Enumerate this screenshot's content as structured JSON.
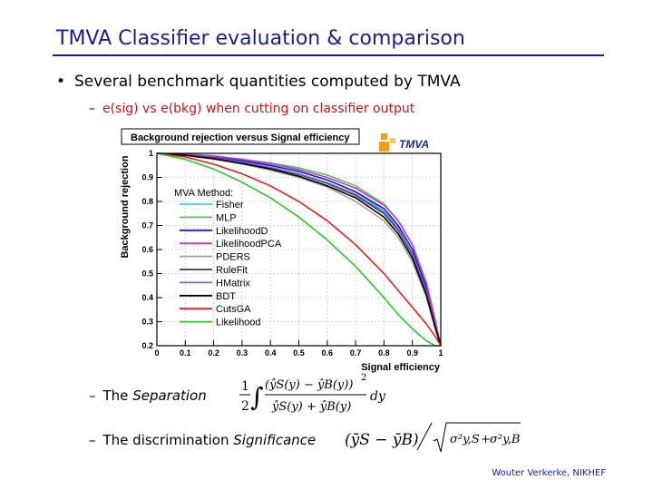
{
  "slide": {
    "title": "TMVA Classifier evaluation & comparison",
    "bullet_text": "Several benchmark quantities computed by TMVA",
    "sub_item": "e(sig) vs e(bkg) when cutting on classifier output",
    "separation_prefix": "The",
    "separation_term": "Separation",
    "significance_prefix": "The discrimination",
    "significance_term": "Significance",
    "footer": "Wouter Verkerke, NIKHEF",
    "colors": {
      "title": "#1c1c8c",
      "subitem": "#c0181c"
    }
  },
  "logo": {
    "text": "TMVA"
  },
  "equations": {
    "separation": {
      "half_num": "1",
      "half_den": "2",
      "numerator": "(ŷS(y) − ŷB(y))",
      "exponent": "2",
      "denominator": "ŷS(y) + ŷB(y)",
      "dy": "dy"
    },
    "significance": {
      "numerator": "(ȳS − ȳB)",
      "sigma1": "σ²y,S",
      "sigma2": "σ²y,B"
    }
  },
  "chart_data": {
    "type": "line",
    "title": "Background rejection versus Signal efficiency",
    "xlabel": "Signal efficiency",
    "ylabel": "Background rejection",
    "xlim": [
      0,
      1
    ],
    "ylim": [
      0.2,
      1
    ],
    "xticks": [
      "0",
      "0.1",
      "0.2",
      "0.3",
      "0.4",
      "0.5",
      "0.6",
      "0.7",
      "0.8",
      "0.9",
      "1"
    ],
    "yticks": [
      "0.2",
      "0.3",
      "0.4",
      "0.5",
      "0.6",
      "0.7",
      "0.8",
      "0.9",
      "1"
    ],
    "grid": true,
    "legend_title": "MVA Method:",
    "legend_position": "left",
    "series": [
      {
        "name": "Fisher",
        "color": "#43d1dc",
        "x": [
          0,
          0.1,
          0.2,
          0.3,
          0.4,
          0.5,
          0.6,
          0.7,
          0.8,
          0.85,
          0.9,
          0.95,
          0.98,
          1
        ],
        "y": [
          1,
          0.995,
          0.985,
          0.97,
          0.95,
          0.925,
          0.89,
          0.84,
          0.76,
          0.69,
          0.58,
          0.42,
          0.28,
          0.2
        ]
      },
      {
        "name": "MLP",
        "color": "#52c750",
        "x": [
          0,
          0.1,
          0.2,
          0.3,
          0.4,
          0.5,
          0.6,
          0.7,
          0.8,
          0.85,
          0.9,
          0.95,
          0.98,
          1
        ],
        "y": [
          1,
          0.997,
          0.99,
          0.975,
          0.96,
          0.94,
          0.91,
          0.865,
          0.79,
          0.72,
          0.62,
          0.45,
          0.3,
          0.2
        ]
      },
      {
        "name": "LikelihoodD",
        "color": "#1c1cc8",
        "x": [
          0,
          0.1,
          0.2,
          0.3,
          0.4,
          0.5,
          0.6,
          0.7,
          0.8,
          0.85,
          0.9,
          0.95,
          0.98,
          1
        ],
        "y": [
          1,
          0.995,
          0.985,
          0.97,
          0.95,
          0.925,
          0.89,
          0.84,
          0.77,
          0.7,
          0.6,
          0.44,
          0.29,
          0.2
        ]
      },
      {
        "name": "LikelihoodPCA",
        "color": "#c837c8",
        "x": [
          0,
          0.1,
          0.2,
          0.3,
          0.4,
          0.5,
          0.6,
          0.7,
          0.8,
          0.85,
          0.9,
          0.95,
          0.98,
          1
        ],
        "y": [
          1,
          0.996,
          0.988,
          0.975,
          0.957,
          0.933,
          0.9,
          0.855,
          0.785,
          0.72,
          0.62,
          0.46,
          0.31,
          0.2
        ]
      },
      {
        "name": "PDERS",
        "color": "#a0a0a0",
        "x": [
          0,
          0.1,
          0.2,
          0.3,
          0.4,
          0.5,
          0.6,
          0.7,
          0.8,
          0.85,
          0.9,
          0.95,
          0.98,
          1
        ],
        "y": [
          1,
          0.99,
          0.975,
          0.955,
          0.93,
          0.9,
          0.86,
          0.8,
          0.72,
          0.65,
          0.55,
          0.4,
          0.27,
          0.2
        ]
      },
      {
        "name": "RuleFit",
        "color": "#3c3c3c",
        "x": [
          0,
          0.1,
          0.2,
          0.3,
          0.4,
          0.5,
          0.6,
          0.7,
          0.8,
          0.85,
          0.9,
          0.95,
          0.98,
          1
        ],
        "y": [
          1,
          0.993,
          0.98,
          0.962,
          0.94,
          0.913,
          0.875,
          0.825,
          0.75,
          0.68,
          0.58,
          0.42,
          0.28,
          0.2
        ]
      },
      {
        "name": "HMatrix",
        "color": "#6a6ad2",
        "x": [
          0,
          0.1,
          0.2,
          0.3,
          0.4,
          0.5,
          0.6,
          0.7,
          0.8,
          0.85,
          0.9,
          0.95,
          0.98,
          1
        ],
        "y": [
          1,
          0.993,
          0.98,
          0.964,
          0.942,
          0.915,
          0.878,
          0.83,
          0.755,
          0.685,
          0.585,
          0.425,
          0.285,
          0.2
        ]
      },
      {
        "name": "BDT",
        "color": "#000000",
        "x": [
          0,
          0.1,
          0.2,
          0.3,
          0.4,
          0.5,
          0.6,
          0.7,
          0.8,
          0.85,
          0.9,
          0.95,
          0.98,
          1
        ],
        "y": [
          1,
          0.992,
          0.978,
          0.958,
          0.935,
          0.905,
          0.865,
          0.815,
          0.735,
          0.665,
          0.565,
          0.41,
          0.28,
          0.2
        ]
      },
      {
        "name": "CutsGA",
        "color": "#dc1e1e",
        "x": [
          0,
          0.1,
          0.2,
          0.3,
          0.4,
          0.5,
          0.6,
          0.7,
          0.8,
          0.85,
          0.9,
          0.95,
          0.98,
          1
        ],
        "y": [
          1,
          0.985,
          0.955,
          0.915,
          0.865,
          0.8,
          0.72,
          0.62,
          0.5,
          0.43,
          0.36,
          0.29,
          0.24,
          0.2
        ]
      },
      {
        "name": "Likelihood",
        "color": "#28c828",
        "x": [
          0,
          0.1,
          0.2,
          0.3,
          0.4,
          0.5,
          0.6,
          0.7,
          0.8,
          0.85,
          0.9,
          0.95,
          0.98,
          1
        ],
        "y": [
          1,
          0.975,
          0.935,
          0.88,
          0.815,
          0.735,
          0.64,
          0.53,
          0.4,
          0.33,
          0.27,
          0.22,
          0.2,
          0.2
        ]
      }
    ]
  }
}
